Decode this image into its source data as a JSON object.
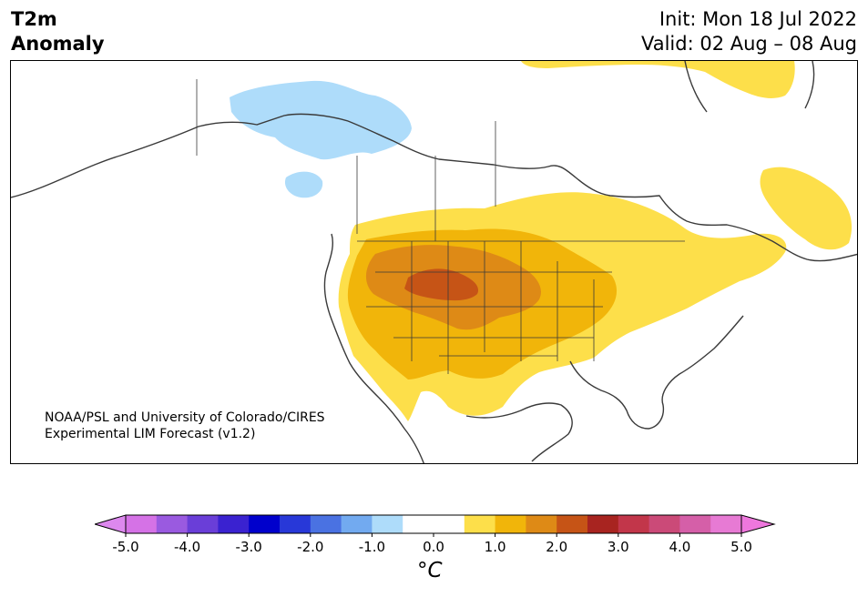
{
  "header": {
    "variable_line1": "T2m",
    "variable_line2": "Anomaly",
    "init_text": "Init: Mon 18 Jul 2022",
    "valid_text": "Valid: 02 Aug – 08 Aug"
  },
  "credit": {
    "line1": "NOAA/PSL and University of Colorado/CIRES",
    "line2": "Experimental LIM Forecast (v1.2)"
  },
  "colorbar": {
    "unit_label": "°C",
    "ticks": [
      "-5.0",
      "-4.0",
      "-3.0",
      "-2.0",
      "-1.0",
      "0.0",
      "1.0",
      "2.0",
      "3.0",
      "4.0",
      "5.0"
    ],
    "colors": [
      "#d572e6",
      "#9a5ae0",
      "#6a3ed8",
      "#3a22d0",
      "#0000cc",
      "#2838d8",
      "#4a72e2",
      "#72aaf0",
      "#aedcfa",
      "#ffffff",
      "#ffffff",
      "#fddf4a",
      "#f1b50a",
      "#de8a16",
      "#c65416",
      "#a82420",
      "#c2364a",
      "#cb4a78",
      "#d55fa8",
      "#e77ad4"
    ],
    "under_color": "#dd88ee",
    "over_color": "#ee77dd"
  },
  "map": {
    "anomaly_colors": {
      "neg_1_0": "#aedcfa",
      "pos_0_5": "#fddf4a",
      "pos_1_0": "#f1b50a",
      "pos_1_5": "#de8a16",
      "pos_2_0": "#c65416"
    },
    "coast_color": "#3a3a3a"
  }
}
